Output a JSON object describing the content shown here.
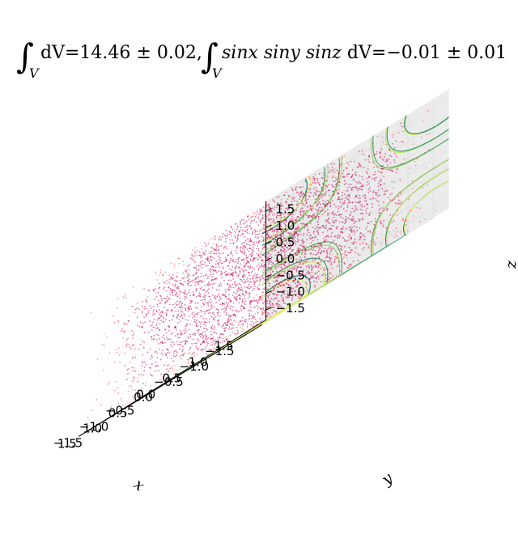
{
  "chart_data": {
    "type": "scatter",
    "title": {
      "part1_value": "14.46",
      "part1_err": "0.02",
      "part2_value": "−0.01",
      "part2_err": "0.01",
      "integral_symbol": "∫",
      "domain_subscript": "V",
      "differential": "dV",
      "integrand": "sinx siny sinz"
    },
    "xlabel": "x",
    "ylabel": "y",
    "zlabel": "z",
    "xlim": [
      -1.8,
      1.8
    ],
    "ylim": [
      -1.8,
      1.8
    ],
    "zlim": [
      -1.8,
      1.8
    ],
    "x_ticks": [
      "−1.5",
      "−1.0",
      "−0.5",
      "0.0",
      "0.5",
      "1.0",
      "1.5"
    ],
    "y_ticks": [
      "−1.5",
      "−1.0",
      "−0.5",
      "0.0",
      "0.5",
      "1.0",
      "1.5"
    ],
    "z_ticks": [
      "−1.5",
      "−1.0",
      "−0.5",
      "0.0",
      "0.5",
      "1.0",
      "1.5"
    ],
    "solid": "regular dodecahedron",
    "contour_function": "sin(x)·sin(y)·sin(z)",
    "contour_colormap": "summer",
    "colors": {
      "points": "#ff0000",
      "polyhedron_fill": "#7b66f0",
      "polyhedron_edge": "#1a1a33",
      "pane": "#f2f2f2",
      "grid": "#e3e3e3"
    },
    "grid": true
  }
}
